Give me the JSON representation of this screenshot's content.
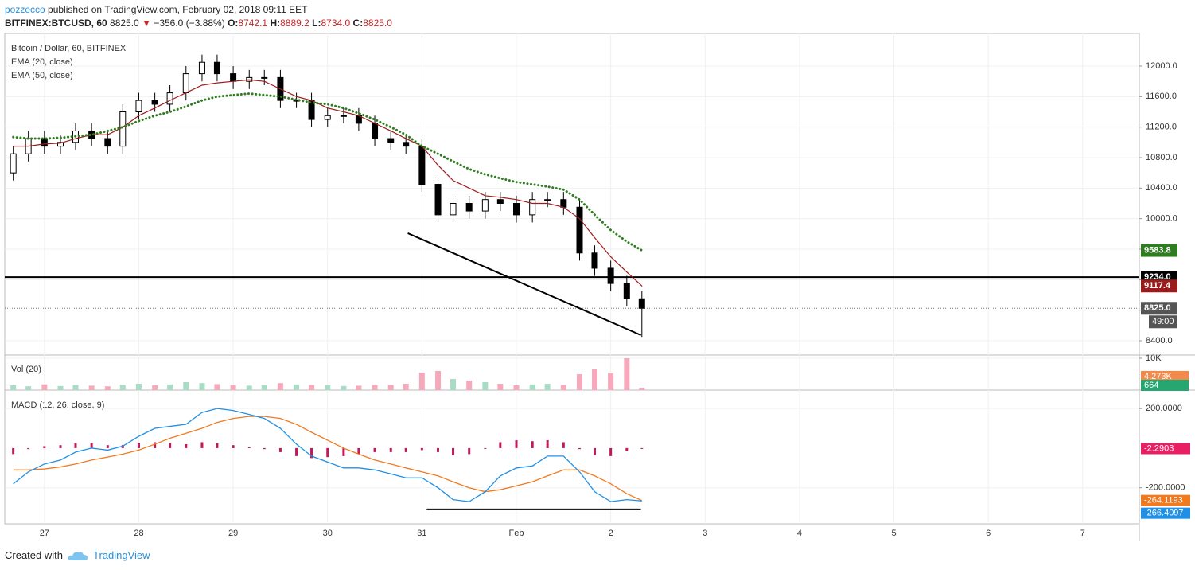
{
  "header": {
    "author": "pozzecco",
    "published": " published on TradingView.com, February 02, 2018 09:11 EET",
    "symbol": "BITFINEX:BTCUSD, 60",
    "last": "8825.0",
    "arrow": "▼",
    "change": "−356.0 (−3.88%)",
    "o_label": "O:",
    "o": "8742.1",
    "h_label": "H:",
    "h": "8889.2",
    "l_label": "L:",
    "l": "8734.0",
    "c_label": "C:",
    "c": "8825.0"
  },
  "footer": {
    "created": "Created with",
    "brand": "TradingView"
  },
  "chart_data": {
    "type": "candlestick",
    "title": "Bitcoin / Dollar, 60, BITFINEX",
    "xlim": [
      -0.42,
      11.6
    ],
    "xticks": [
      {
        "value": 0,
        "label": "27"
      },
      {
        "value": 1,
        "label": "28"
      },
      {
        "value": 2,
        "label": "29"
      },
      {
        "value": 3,
        "label": "30"
      },
      {
        "value": 4,
        "label": "31"
      },
      {
        "value": 5,
        "label": "Feb"
      },
      {
        "value": 6,
        "label": "2"
      },
      {
        "value": 7,
        "label": "3"
      },
      {
        "value": 8,
        "label": "4"
      },
      {
        "value": 9,
        "label": "5"
      },
      {
        "value": 10,
        "label": "6"
      },
      {
        "value": 11,
        "label": "7"
      }
    ],
    "x": [
      -0.33,
      -0.17,
      0,
      0.17,
      0.33,
      0.5,
      0.67,
      0.83,
      1,
      1.17,
      1.33,
      1.5,
      1.67,
      1.83,
      2,
      2.17,
      2.33,
      2.5,
      2.67,
      2.83,
      3,
      3.17,
      3.33,
      3.5,
      3.67,
      3.83,
      4,
      4.17,
      4.33,
      4.5,
      4.67,
      4.83,
      5,
      5.17,
      5.33,
      5.5,
      5.67,
      5.83,
      6,
      6.17,
      6.33
    ],
    "open": [
      10600,
      10850,
      11050,
      10950,
      11000,
      11150,
      11050,
      10950,
      11400,
      11550,
      11500,
      11650,
      11900,
      12050,
      11900,
      11800,
      11850,
      11850,
      11550,
      11550,
      11300,
      11350,
      11350,
      11250,
      11050,
      11000,
      10950,
      10450,
      10050,
      10200,
      10100,
      10250,
      10200,
      10050,
      10250,
      10250,
      10150,
      9550,
      9350,
      9150,
      8950
    ],
    "high": [
      10950,
      11150,
      11150,
      11100,
      11250,
      11250,
      11150,
      11500,
      11650,
      11650,
      11750,
      12000,
      12150,
      12150,
      12000,
      11950,
      11950,
      11950,
      11650,
      11650,
      11450,
      11450,
      11450,
      11350,
      11150,
      11100,
      11050,
      10550,
      10300,
      10300,
      10350,
      10350,
      10300,
      10350,
      10350,
      10350,
      10250,
      9650,
      9450,
      9250,
      9050
    ],
    "low": [
      10500,
      10750,
      10850,
      10850,
      10900,
      10950,
      10850,
      10850,
      11300,
      11400,
      11400,
      11550,
      11800,
      11800,
      11700,
      11700,
      11750,
      11450,
      11450,
      11200,
      11200,
      11250,
      11150,
      10950,
      10900,
      10850,
      10350,
      9950,
      9950,
      10000,
      10000,
      10100,
      9950,
      9950,
      10150,
      10050,
      9450,
      9250,
      9050,
      8850,
      8450
    ],
    "close": [
      10850,
      11050,
      10950,
      11000,
      11150,
      11050,
      10950,
      11400,
      11550,
      11500,
      11650,
      11900,
      12050,
      11900,
      11800,
      11850,
      11850,
      11550,
      11550,
      11300,
      11350,
      11350,
      11250,
      11050,
      11000,
      10950,
      10450,
      10050,
      10200,
      10100,
      10250,
      10200,
      10050,
      10250,
      10250,
      10150,
      9550,
      9350,
      9150,
      8950,
      8825
    ],
    "ylim": [
      8212,
      12428
    ],
    "yticks": [
      {
        "value": 8400,
        "label": "8400.0"
      },
      {
        "value": 8800,
        "label": "8800.0"
      },
      {
        "value": 9200,
        "label": "9200.0"
      },
      {
        "value": 9600,
        "label": "9600.0"
      },
      {
        "value": 10000,
        "label": "10000.0"
      },
      {
        "value": 10400,
        "label": "10400.0"
      },
      {
        "value": 10800,
        "label": "10800.0"
      },
      {
        "value": 11200,
        "label": "11200.0"
      },
      {
        "value": 11600,
        "label": "11600.0"
      },
      {
        "value": 12000,
        "label": "12000.0"
      }
    ],
    "grid": true,
    "series": [
      {
        "name": "EMA (20, close)",
        "color": "#9b1c1c",
        "style": "solid",
        "values": [
          10950,
          10950,
          10980,
          10990,
          11050,
          11100,
          11100,
          11200,
          11350,
          11450,
          11550,
          11650,
          11750,
          11780,
          11800,
          11820,
          11800,
          11700,
          11600,
          11550,
          11450,
          11400,
          11350,
          11250,
          11150,
          11050,
          10950,
          10700,
          10500,
          10400,
          10300,
          10280,
          10250,
          10200,
          10200,
          10150,
          10000,
          9750,
          9500,
          9300,
          9117.4
        ]
      },
      {
        "name": "EMA (50, close)",
        "color": "#2e7d1e",
        "style": "dotted",
        "values": [
          11070,
          11050,
          11050,
          11060,
          11080,
          11100,
          11150,
          11200,
          11280,
          11350,
          11400,
          11470,
          11550,
          11600,
          11620,
          11640,
          11620,
          11600,
          11560,
          11520,
          11500,
          11450,
          11380,
          11300,
          11200,
          11100,
          10950,
          10850,
          10750,
          10650,
          10580,
          10530,
          10480,
          10450,
          10420,
          10380,
          10250,
          10050,
          9850,
          9700,
          9583.8
        ]
      }
    ],
    "price_labels": [
      {
        "value": 9583.8,
        "label": "9583.8",
        "color": "#2e7d1e"
      },
      {
        "value": 9234,
        "label": "9234.0",
        "color": "#000000"
      },
      {
        "value": 9117.4,
        "label": "9117.4",
        "color": "#9b1c1c"
      },
      {
        "value": 8825,
        "label": "8825.0",
        "color": "#555555"
      }
    ],
    "countdown": "49:00",
    "hline": 9234,
    "trendline": [
      [
        3.85,
        9809
      ],
      [
        6.32,
        8473
      ]
    ],
    "volume": {
      "name": "Vol (20)",
      "values": [
        1500,
        1200,
        1800,
        1300,
        1600,
        1400,
        1200,
        1700,
        2000,
        1500,
        1800,
        2500,
        2200,
        1900,
        1600,
        1400,
        1500,
        2200,
        1800,
        1600,
        1500,
        1300,
        1400,
        1600,
        1700,
        2000,
        5500,
        6000,
        3500,
        3000,
        2500,
        2000,
        1500,
        1800,
        2000,
        1700,
        5000,
        6500,
        5500,
        10000,
        664
      ],
      "ylim": [
        0,
        11000
      ],
      "yticks": [
        {
          "value": 10000,
          "label": "10K"
        }
      ],
      "labels": [
        {
          "value": 4273,
          "label": "4.273K",
          "color": "#f0894a"
        },
        {
          "value": 664,
          "label": "664",
          "color": "#26a671"
        }
      ]
    },
    "macd": {
      "name": "MACD (12, 26, close, 9)",
      "ylim": [
        -382,
        293
      ],
      "yticks": [
        {
          "value": 200,
          "label": "200.0000"
        },
        {
          "value": -200,
          "label": "-200.0000"
        }
      ],
      "macd": {
        "color": "#1e90e8",
        "values": [
          -180,
          -120,
          -80,
          -60,
          -20,
          0,
          -10,
          10,
          60,
          100,
          110,
          120,
          180,
          200,
          190,
          170,
          150,
          100,
          20,
          -40,
          -70,
          -100,
          -100,
          -110,
          -130,
          -150,
          -150,
          -200,
          -260,
          -270,
          -220,
          -140,
          -100,
          -90,
          -40,
          -40,
          -120,
          -220,
          -270,
          -260,
          -266.4097
        ]
      },
      "signal": {
        "color": "#f07a1f",
        "values": [
          -110,
          -110,
          -105,
          -95,
          -80,
          -60,
          -45,
          -30,
          -10,
          20,
          50,
          75,
          100,
          130,
          150,
          160,
          160,
          150,
          120,
          80,
          40,
          0,
          -30,
          -60,
          -80,
          -100,
          -120,
          -140,
          -170,
          -200,
          -220,
          -210,
          -190,
          -170,
          -140,
          -110,
          -110,
          -140,
          -180,
          -230,
          -264.1193
        ]
      },
      "histogram": {
        "color": "#c2185b",
        "values": [
          -30,
          -5,
          10,
          15,
          25,
          25,
          15,
          15,
          25,
          30,
          25,
          20,
          30,
          25,
          15,
          5,
          -5,
          -20,
          -40,
          -50,
          -45,
          -40,
          -30,
          -20,
          -20,
          -20,
          -10,
          -20,
          -35,
          -30,
          0,
          30,
          40,
          35,
          40,
          30,
          -5,
          -35,
          -40,
          -15,
          -2.2903
        ]
      },
      "labels": [
        {
          "value": -2.2903,
          "label": "-2.2903",
          "color": "#e91e63"
        },
        {
          "value": -264.1193,
          "label": "-264.1193",
          "color": "#f07a1f"
        },
        {
          "value": -266.4097,
          "label": "-266.4097",
          "color": "#1e90e8"
        }
      ],
      "trendline": [
        [
          4.05,
          -309
        ],
        [
          6.32,
          -309
        ]
      ]
    }
  }
}
